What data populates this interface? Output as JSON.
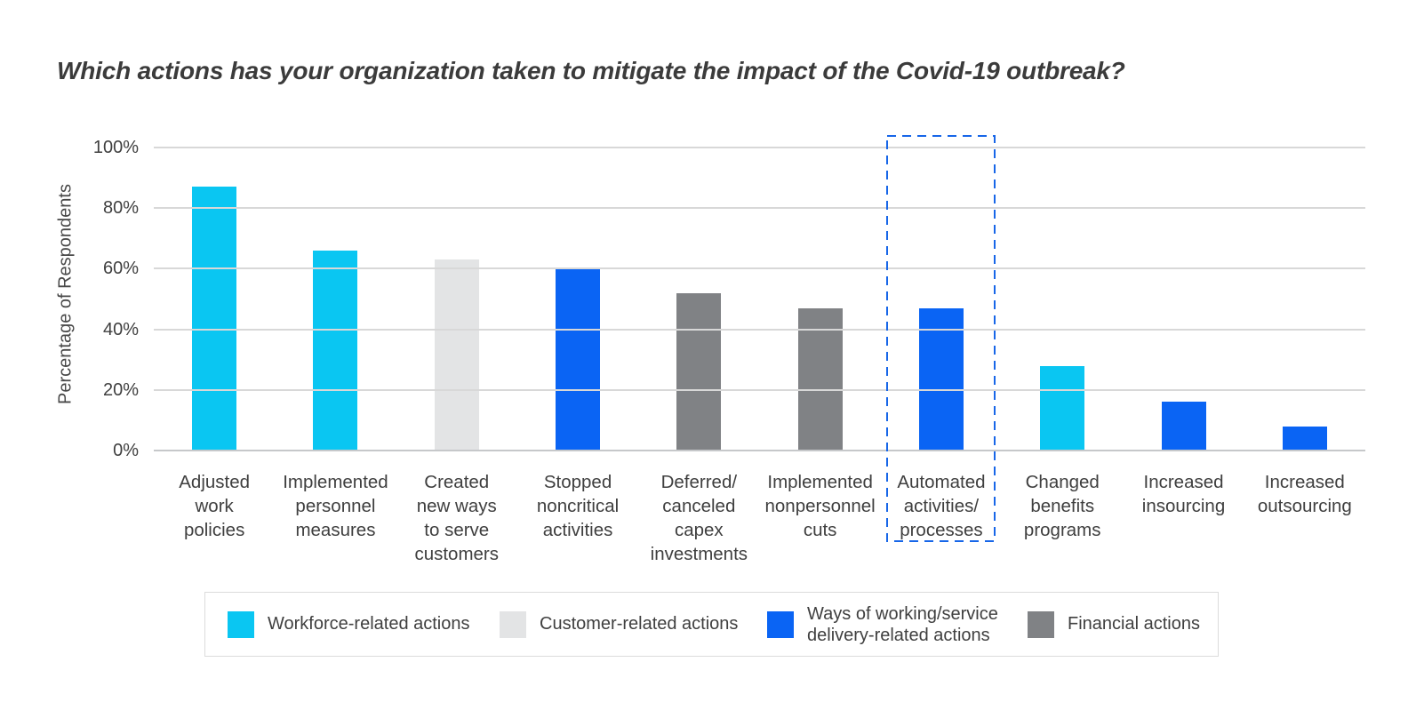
{
  "title": "Which actions has your organization taken to mitigate the impact of the Covid-19 outbreak?",
  "colors": {
    "workforce": "#0ac6f2",
    "customer": "#e3e4e5",
    "ways_of_working": "#0a64f4",
    "financial": "#808285",
    "highlight_dash": "#1766e8",
    "gridline": "#d8d8d8",
    "axis_line": "#c6c8ca",
    "text": "#3f3f3f"
  },
  "chart_data": {
    "type": "bar",
    "title": "Which actions has your organization taken to mitigate the impact of the Covid-19 outbreak?",
    "xlabel": "",
    "ylabel": "Percentage of Respondents",
    "ylim": [
      0,
      100
    ],
    "yticks": [
      "100%",
      "80%",
      "60%",
      "40%",
      "20%",
      "0%"
    ],
    "grid": "horizontal",
    "legend_position": "bottom",
    "palette": {
      "workforce": "#0ac6f2",
      "customer": "#e3e4e5",
      "ways_of_working": "#0a64f4",
      "financial": "#808285"
    },
    "categories": [
      "Adjusted work policies",
      "Implemented personnel measures",
      "Created new ways to serve customers",
      "Stopped noncritical activities",
      "Deferred/ canceled capex investments",
      "Implemented nonpersonnel cuts",
      "Automated activities/ processes",
      "Changed benefits programs",
      "Increased insourcing",
      "Increased outsourcing"
    ],
    "values": [
      87,
      66,
      63,
      60,
      52,
      47,
      47,
      28,
      16,
      8
    ],
    "bars": [
      {
        "label": "Adjusted work policies",
        "lines": [
          "Adjusted",
          "work",
          "policies"
        ],
        "value": 87,
        "category": "workforce"
      },
      {
        "label": "Implemented personnel measures",
        "lines": [
          "Implemented",
          "personnel",
          "measures"
        ],
        "value": 66,
        "category": "workforce"
      },
      {
        "label": "Created new ways to serve customers",
        "lines": [
          "Created",
          "new ways",
          "to serve",
          "customers"
        ],
        "value": 63,
        "category": "customer"
      },
      {
        "label": "Stopped noncritical activities",
        "lines": [
          "Stopped",
          "noncritical",
          "activities"
        ],
        "value": 60,
        "category": "ways_of_working"
      },
      {
        "label": "Deferred/ canceled capex investments",
        "lines": [
          "Deferred/",
          "canceled",
          "capex",
          "investments"
        ],
        "value": 52,
        "category": "financial"
      },
      {
        "label": "Implemented nonpersonnel cuts",
        "lines": [
          "Implemented",
          "nonpersonnel",
          "cuts"
        ],
        "value": 47,
        "category": "financial"
      },
      {
        "label": "Automated activities/ processes",
        "lines": [
          "Automated",
          "activities/",
          "processes"
        ],
        "value": 47,
        "category": "ways_of_working"
      },
      {
        "label": "Changed benefits programs",
        "lines": [
          "Changed",
          "benefits",
          "programs"
        ],
        "value": 28,
        "category": "workforce"
      },
      {
        "label": "Increased insourcing",
        "lines": [
          "Increased",
          "insourcing"
        ],
        "value": 16,
        "category": "ways_of_working"
      },
      {
        "label": "Increased outsourcing",
        "lines": [
          "Increased",
          "outsourcing"
        ],
        "value": 8,
        "category": "ways_of_working"
      }
    ],
    "highlight": {
      "index": 6,
      "label": "Automated activities/ processes",
      "style": "blue dashed rectangle"
    },
    "legend": [
      {
        "label": "Workforce-related actions",
        "category": "workforce"
      },
      {
        "label": "Customer-related actions",
        "category": "customer"
      },
      {
        "label": "Ways of working/service delivery-related actions",
        "category": "ways_of_working"
      },
      {
        "label": "Financial actions",
        "category": "financial"
      }
    ]
  }
}
